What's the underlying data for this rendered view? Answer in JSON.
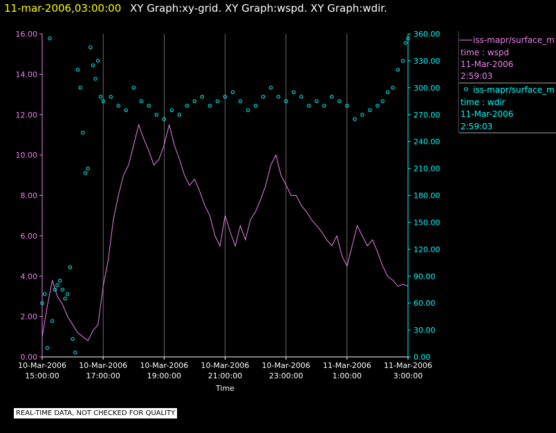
{
  "header": {
    "datetime": "11-mar-2006,03:00:00",
    "titles": "XY Graph:xy-grid.  XY Graph:wspd.  XY Graph:wdir."
  },
  "footer": {
    "note": "REAL-TIME DATA, NOT CHECKED FOR QUALITY"
  },
  "colors": {
    "background": "#000000",
    "wspd": "#ee82ee",
    "wdir": "#00ffff",
    "grid": "#ffffff",
    "datetime": "#ffff00",
    "title": "#ffffff"
  },
  "chart_data": {
    "type": "line",
    "xlabel": "Time",
    "x_range": [
      "2006-03-10 15:00:00",
      "2006-03-11 03:00:00"
    ],
    "x_ticks": [
      {
        "date": "10-Mar-2006",
        "time": "15:00:00"
      },
      {
        "date": "10-Mar-2006",
        "time": "17:00:00"
      },
      {
        "date": "10-Mar-2006",
        "time": "19:00:00"
      },
      {
        "date": "10-Mar-2006",
        "time": "21:00:00"
      },
      {
        "date": "10-Mar-2006",
        "time": "23:00:00"
      },
      {
        "date": "11-Mar-2006",
        "time": "1:00:00"
      },
      {
        "date": "11-Mar-2006",
        "time": "3:00:00"
      }
    ],
    "y_left": {
      "ylim": [
        0,
        16
      ],
      "ticks": [
        "0.00",
        "2.00",
        "4.00",
        "6.00",
        "8.00",
        "10.00",
        "12.00",
        "14.00",
        "16.00"
      ]
    },
    "y_right": {
      "ylim": [
        0,
        360
      ],
      "ticks": [
        "0.00",
        "30.00",
        "60.00",
        "90.00",
        "120.00",
        "150.00",
        "180.00",
        "210.00",
        "240.00",
        "270.00",
        "300.00",
        "330.00",
        "360.00"
      ]
    },
    "grid": "vertical lines at each x tick",
    "legend": [
      {
        "source": "iss-mapr/surface_m",
        "var": "time : wspd",
        "date": "11-Mar-2006",
        "time": "2:59:03",
        "marker": "line"
      },
      {
        "source": "iss-mapr/surface_m",
        "var": "time : wdir",
        "date": "11-Mar-2006",
        "time": "2:59:03",
        "marker": "circle"
      }
    ],
    "series": [
      {
        "var": "wspd",
        "axis": "left",
        "style": "line",
        "x": [
          "2006-03-10 15:00",
          "2006-03-10 15:10",
          "2006-03-10 15:20",
          "2006-03-10 15:30",
          "2006-03-10 15:40",
          "2006-03-10 15:50",
          "2006-03-10 16:00",
          "2006-03-10 16:10",
          "2006-03-10 16:20",
          "2006-03-10 16:30",
          "2006-03-10 16:40",
          "2006-03-10 16:50",
          "2006-03-10 17:00",
          "2006-03-10 17:10",
          "2006-03-10 17:20",
          "2006-03-10 17:30",
          "2006-03-10 17:40",
          "2006-03-10 17:50",
          "2006-03-10 18:00",
          "2006-03-10 18:10",
          "2006-03-10 18:20",
          "2006-03-10 18:30",
          "2006-03-10 18:40",
          "2006-03-10 18:50",
          "2006-03-10 19:00",
          "2006-03-10 19:10",
          "2006-03-10 19:20",
          "2006-03-10 19:30",
          "2006-03-10 19:40",
          "2006-03-10 19:50",
          "2006-03-10 20:00",
          "2006-03-10 20:10",
          "2006-03-10 20:20",
          "2006-03-10 20:30",
          "2006-03-10 20:40",
          "2006-03-10 20:50",
          "2006-03-10 21:00",
          "2006-03-10 21:10",
          "2006-03-10 21:20",
          "2006-03-10 21:30",
          "2006-03-10 21:40",
          "2006-03-10 21:50",
          "2006-03-10 22:00",
          "2006-03-10 22:10",
          "2006-03-10 22:20",
          "2006-03-10 22:30",
          "2006-03-10 22:40",
          "2006-03-10 22:50",
          "2006-03-10 23:00",
          "2006-03-10 23:10",
          "2006-03-10 23:20",
          "2006-03-10 23:30",
          "2006-03-10 23:40",
          "2006-03-10 23:50",
          "2006-03-11 00:00",
          "2006-03-11 00:10",
          "2006-03-11 00:20",
          "2006-03-11 00:30",
          "2006-03-11 00:40",
          "2006-03-11 00:50",
          "2006-03-11 01:00",
          "2006-03-11 01:10",
          "2006-03-11 01:20",
          "2006-03-11 01:30",
          "2006-03-11 01:40",
          "2006-03-11 01:50",
          "2006-03-11 02:00",
          "2006-03-11 02:10",
          "2006-03-11 02:20",
          "2006-03-11 02:30",
          "2006-03-11 02:40",
          "2006-03-11 02:50",
          "2006-03-11 03:00"
        ],
        "values": [
          1.0,
          2.5,
          3.8,
          3.0,
          2.6,
          2.0,
          1.6,
          1.2,
          1.0,
          0.8,
          1.3,
          1.6,
          3.5,
          4.8,
          6.8,
          8.0,
          9.0,
          9.5,
          10.5,
          11.5,
          10.8,
          10.2,
          9.5,
          9.8,
          10.5,
          11.5,
          10.5,
          9.8,
          9.0,
          8.5,
          8.8,
          8.2,
          7.5,
          7.0,
          6.0,
          5.5,
          7.0,
          6.2,
          5.5,
          6.5,
          5.8,
          6.8,
          7.2,
          7.8,
          8.5,
          9.5,
          10.0,
          9.0,
          8.5,
          8.0,
          8.0,
          7.5,
          7.2,
          6.8,
          6.5,
          6.2,
          5.8,
          5.5,
          6.0,
          5.0,
          4.5,
          5.5,
          6.5,
          6.0,
          5.5,
          5.8,
          5.2,
          4.5,
          4.0,
          3.8,
          3.5,
          3.6,
          3.5
        ]
      },
      {
        "var": "wdir",
        "axis": "right",
        "style": "circles",
        "x": [
          "2006-03-10 15:00",
          "2006-03-10 15:05",
          "2006-03-10 15:10",
          "2006-03-10 15:15",
          "2006-03-10 15:20",
          "2006-03-10 15:25",
          "2006-03-10 15:30",
          "2006-03-10 15:35",
          "2006-03-10 15:40",
          "2006-03-10 15:45",
          "2006-03-10 15:50",
          "2006-03-10 15:55",
          "2006-03-10 16:00",
          "2006-03-10 16:05",
          "2006-03-10 16:10",
          "2006-03-10 16:15",
          "2006-03-10 16:20",
          "2006-03-10 16:25",
          "2006-03-10 16:30",
          "2006-03-10 16:35",
          "2006-03-10 16:40",
          "2006-03-10 16:45",
          "2006-03-10 16:50",
          "2006-03-10 16:55",
          "2006-03-10 17:00",
          "2006-03-10 17:15",
          "2006-03-10 17:30",
          "2006-03-10 17:45",
          "2006-03-10 18:00",
          "2006-03-10 18:15",
          "2006-03-10 18:30",
          "2006-03-10 18:45",
          "2006-03-10 19:00",
          "2006-03-10 19:15",
          "2006-03-10 19:30",
          "2006-03-10 19:45",
          "2006-03-10 20:00",
          "2006-03-10 20:15",
          "2006-03-10 20:30",
          "2006-03-10 20:45",
          "2006-03-10 21:00",
          "2006-03-10 21:15",
          "2006-03-10 21:30",
          "2006-03-10 21:45",
          "2006-03-10 22:00",
          "2006-03-10 22:15",
          "2006-03-10 22:30",
          "2006-03-10 22:45",
          "2006-03-10 23:00",
          "2006-03-10 23:15",
          "2006-03-10 23:30",
          "2006-03-10 23:45",
          "2006-03-11 00:00",
          "2006-03-11 00:15",
          "2006-03-11 00:30",
          "2006-03-11 00:45",
          "2006-03-11 01:00",
          "2006-03-11 01:15",
          "2006-03-11 01:30",
          "2006-03-11 01:45",
          "2006-03-11 02:00",
          "2006-03-11 02:10",
          "2006-03-11 02:20",
          "2006-03-11 02:30",
          "2006-03-11 02:40",
          "2006-03-11 02:50",
          "2006-03-11 02:55",
          "2006-03-11 03:00"
        ],
        "values": [
          60,
          70,
          10,
          355,
          40,
          75,
          80,
          85,
          75,
          65,
          70,
          100,
          20,
          5,
          320,
          300,
          250,
          205,
          210,
          345,
          325,
          310,
          330,
          290,
          285,
          290,
          280,
          275,
          300,
          285,
          280,
          270,
          265,
          275,
          270,
          280,
          285,
          290,
          280,
          285,
          290,
          295,
          285,
          275,
          280,
          290,
          300,
          290,
          285,
          295,
          290,
          280,
          285,
          280,
          290,
          285,
          280,
          265,
          270,
          275,
          280,
          285,
          295,
          300,
          320,
          330,
          350,
          355
        ]
      }
    ]
  }
}
